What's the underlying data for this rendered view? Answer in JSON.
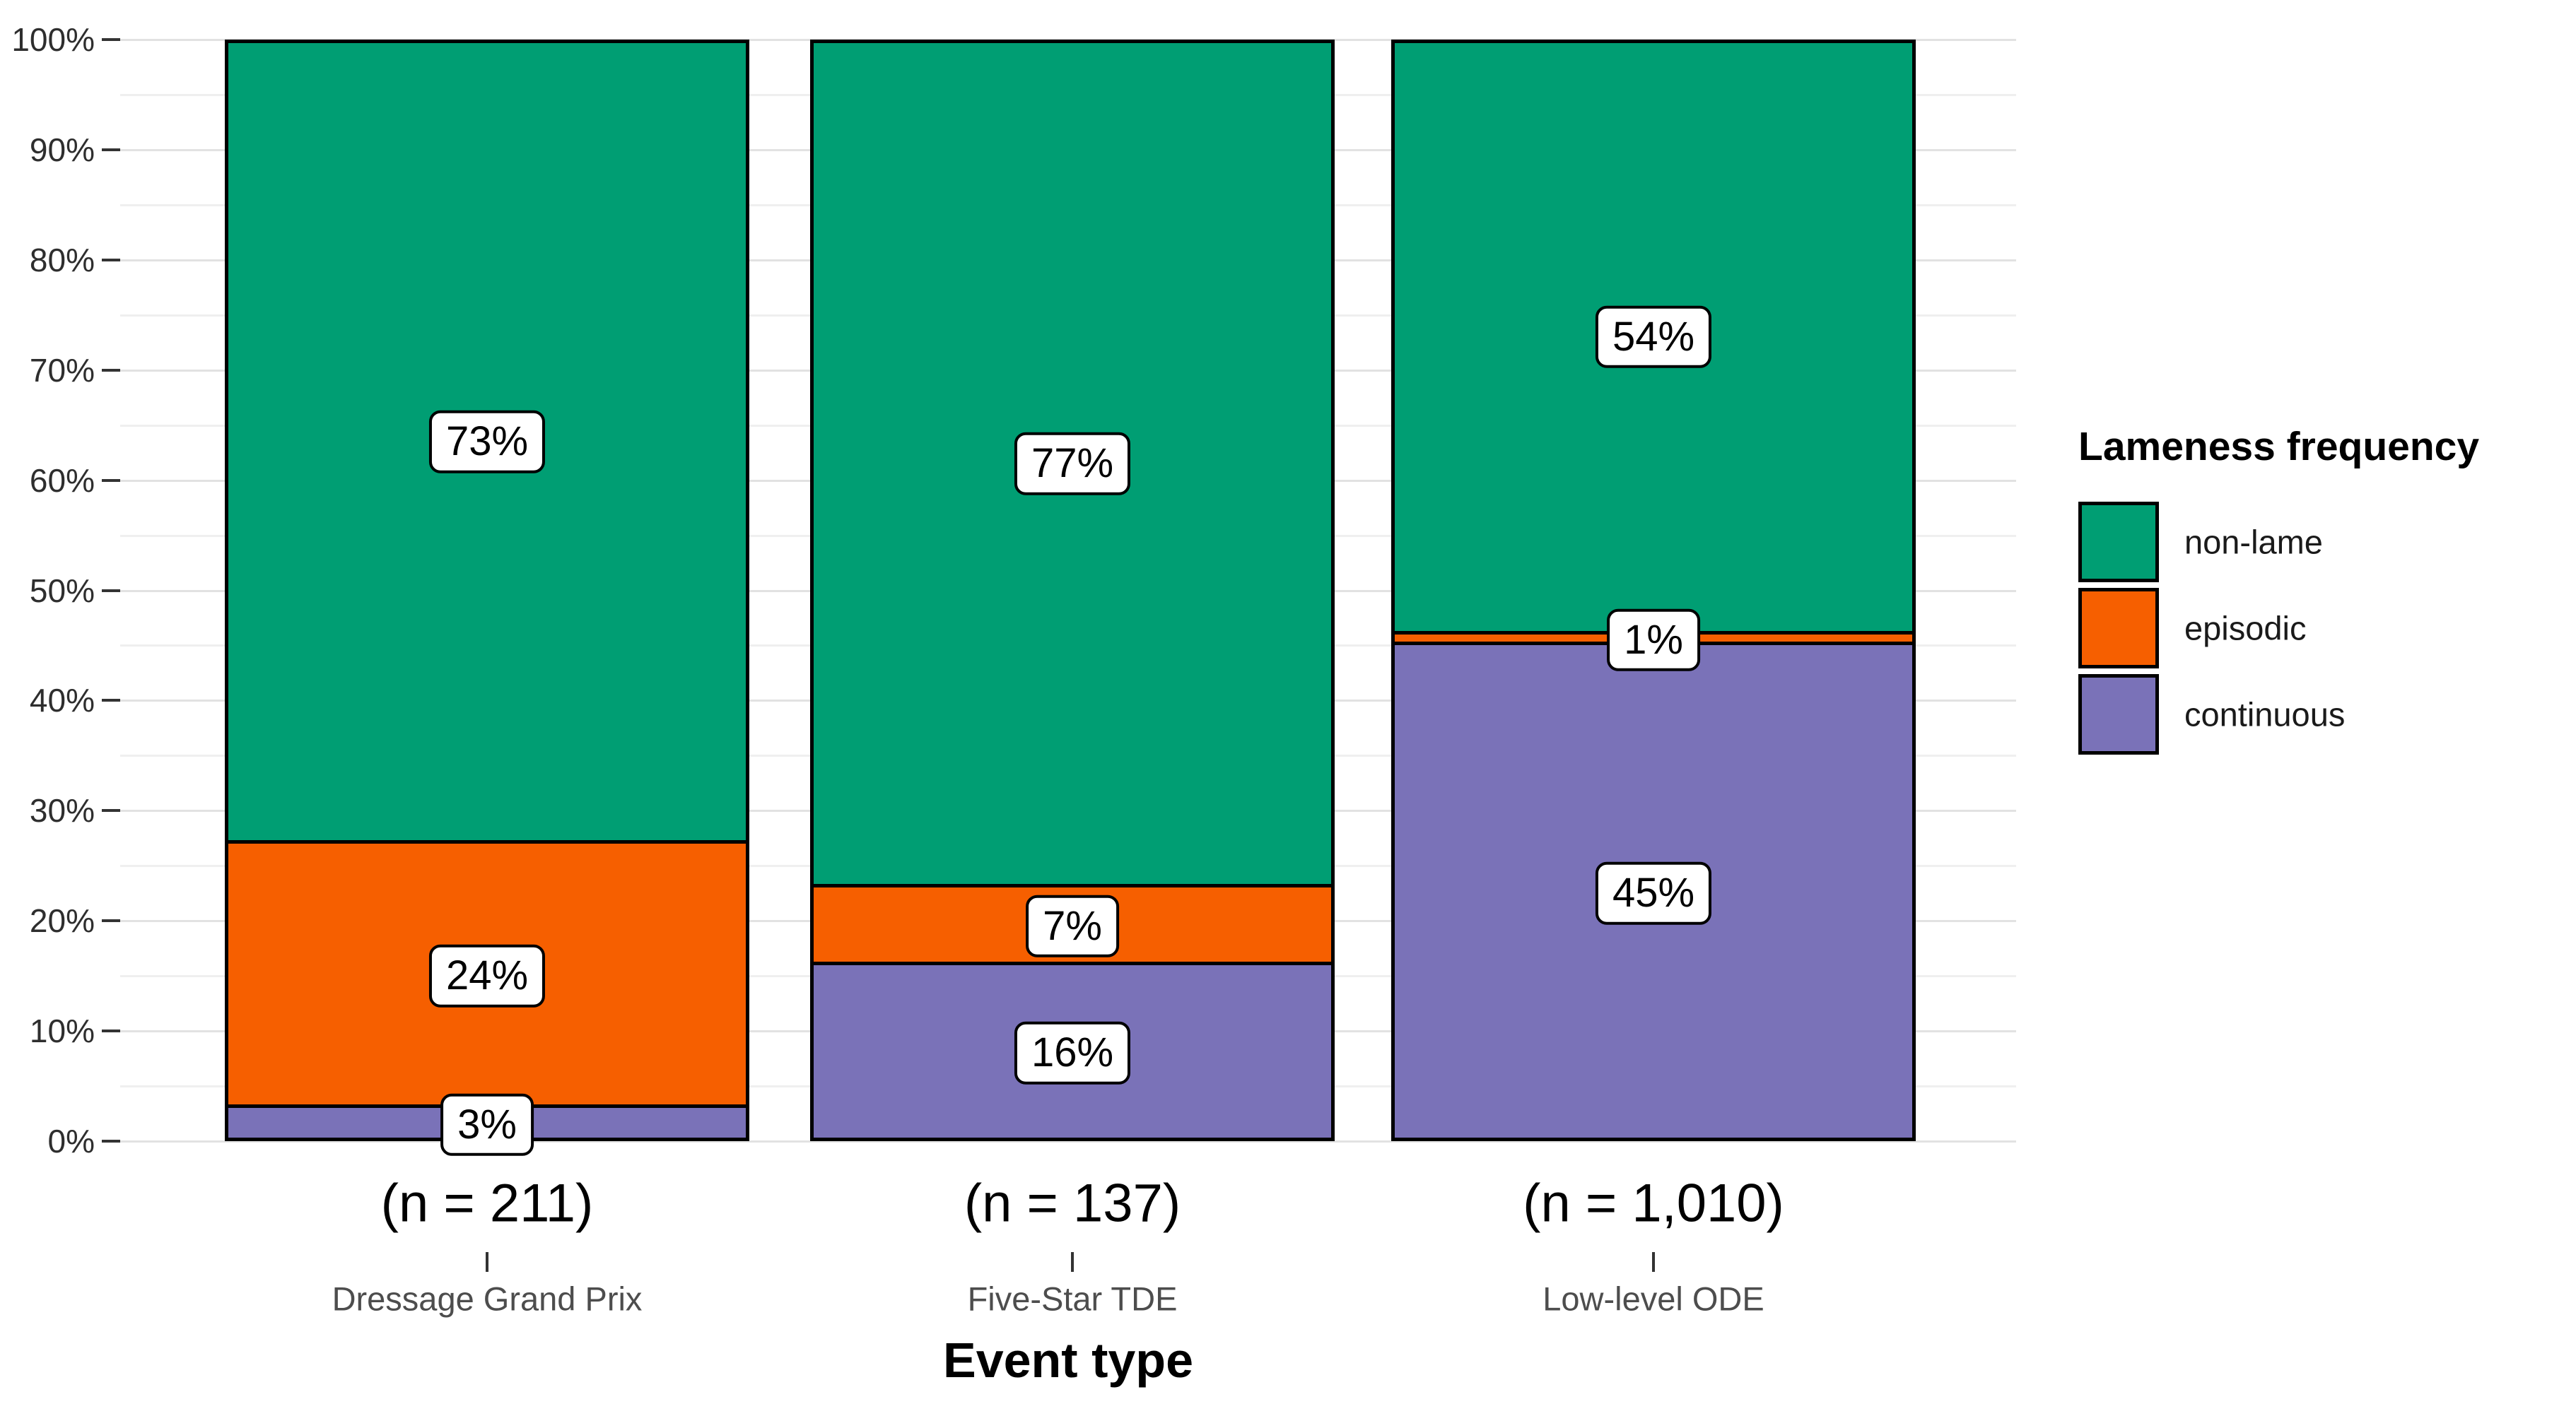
{
  "chart_data": {
    "type": "bar",
    "stacking": "percent",
    "title": "",
    "xlabel": "Event type",
    "ylabel": "",
    "grid": "on",
    "y_axis": {
      "min": 0,
      "max": 100,
      "major_step": 10,
      "minor_step": 5,
      "tick_labels": [
        "0%",
        "10%",
        "20%",
        "30%",
        "40%",
        "50%",
        "60%",
        "70%",
        "80%",
        "90%",
        "100%"
      ]
    },
    "categories": [
      {
        "label": "Dressage Grand Prix",
        "n_label": "(n = 211)"
      },
      {
        "label": "Five-Star TDE",
        "n_label": "(n = 137)"
      },
      {
        "label": "Low-level ODE",
        "n_label": "(n = 1,010)"
      }
    ],
    "series": [
      {
        "name": "non-lame",
        "color": "#009E73",
        "values": [
          73,
          77,
          54
        ],
        "labels": [
          "73%",
          "77%",
          "54%"
        ]
      },
      {
        "name": "episodic",
        "color": "#F65F00",
        "values": [
          24,
          7,
          1
        ],
        "labels": [
          "24%",
          "7%",
          "1%"
        ]
      },
      {
        "name": "continuous",
        "color": "#7A72B8",
        "values": [
          3,
          16,
          45
        ],
        "labels": [
          "3%",
          "16%",
          "45%"
        ]
      }
    ],
    "legend": {
      "title": "Lameness frequency",
      "position": "right",
      "entries": [
        "non-lame",
        "episodic",
        "continuous"
      ]
    }
  }
}
